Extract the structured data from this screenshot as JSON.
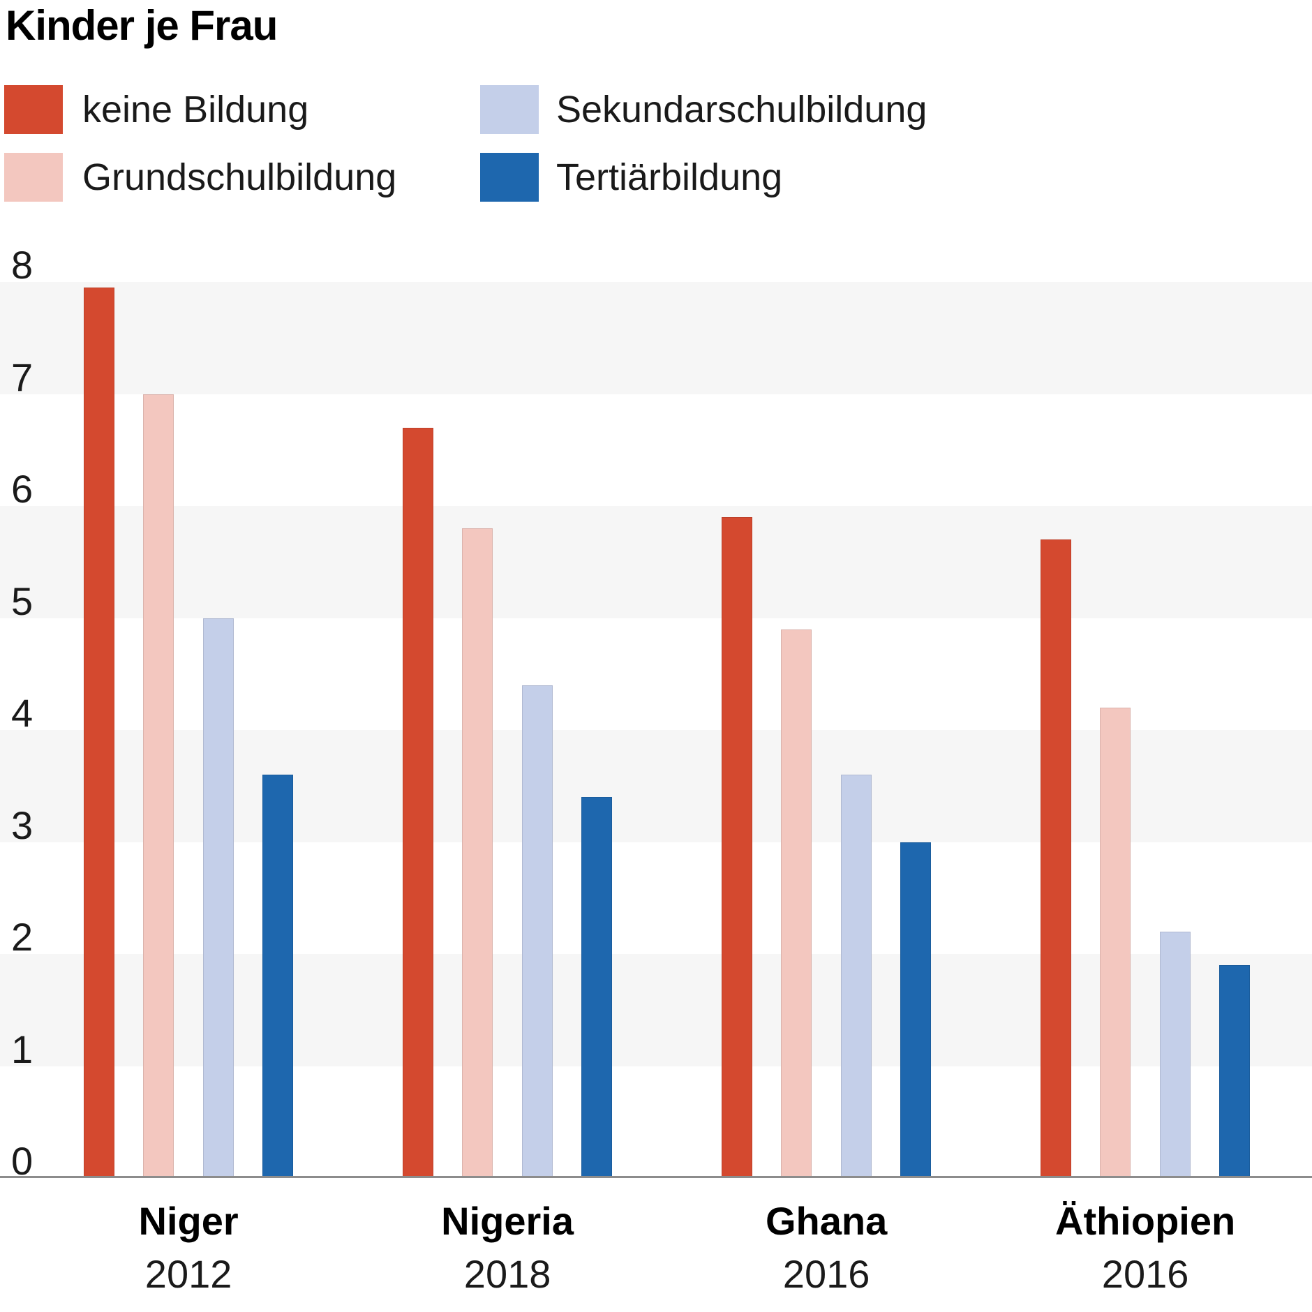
{
  "title": "Kinder je Frau",
  "legend": {
    "items": [
      {
        "label": "keine Bildung",
        "color": "#d4492f"
      },
      {
        "label": "Grundschulbildung",
        "color": "#f3c7bf"
      },
      {
        "label": "Sekundarschulbildung",
        "color": "#c4cfe9"
      },
      {
        "label": "Tertiärbildung",
        "color": "#1e67ae"
      }
    ]
  },
  "chart_data": {
    "type": "bar",
    "title": "Kinder je Frau",
    "categories": [
      "Niger",
      "Nigeria",
      "Ghana",
      "Äthiopien"
    ],
    "category_sublabels": [
      "2012",
      "2018",
      "2016",
      "2016"
    ],
    "series": [
      {
        "name": "keine Bildung",
        "color": "#d4492f",
        "values": [
          7.95,
          6.7,
          5.9,
          5.7
        ]
      },
      {
        "name": "Grundschulbildung",
        "color": "#f3c7bf",
        "values": [
          7.0,
          5.8,
          4.9,
          4.2
        ]
      },
      {
        "name": "Sekundarschulbildung",
        "color": "#c4cfe9",
        "values": [
          5.0,
          4.4,
          3.6,
          2.2
        ]
      },
      {
        "name": "Tertiärbildung",
        "color": "#1e67ae",
        "values": [
          3.6,
          3.4,
          3.0,
          1.9
        ]
      }
    ],
    "xlabel": "",
    "ylabel": "",
    "ylim": [
      0,
      8
    ],
    "yticks": [
      "0",
      "1",
      "2",
      "3",
      "4",
      "5",
      "6",
      "7",
      "8"
    ],
    "grid": "alternating horizontal gray bands",
    "banded_ranges": [
      [
        1,
        2
      ],
      [
        3,
        4
      ],
      [
        5,
        6
      ],
      [
        7,
        8
      ]
    ],
    "legend_position": "top-left, two columns"
  },
  "colors": {
    "band_fill": "#f6f6f6",
    "axis_line": "#8c8c8c",
    "text": "#1a1a1a"
  }
}
